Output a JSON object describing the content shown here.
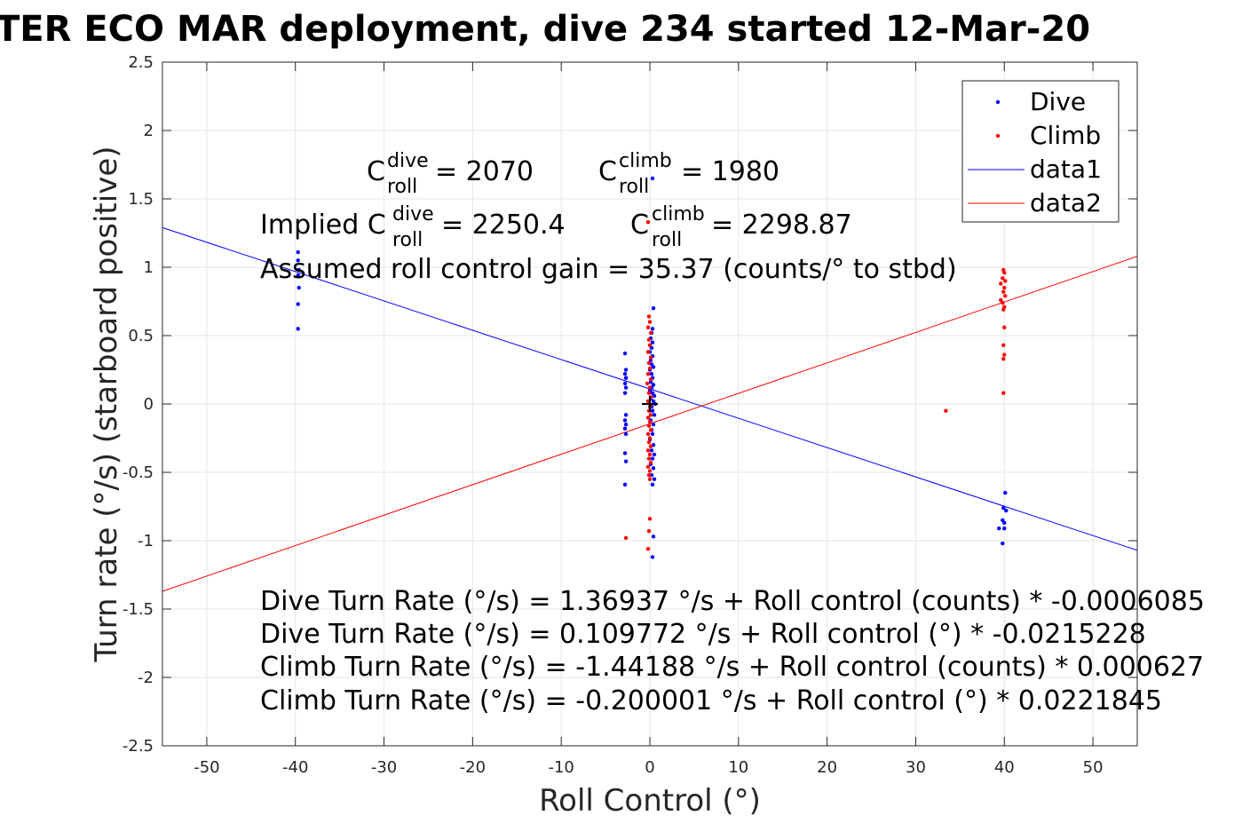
{
  "title": "TER ECO MAR deployment, dive 234 started 12-Mar-20",
  "chart_data": {
    "type": "scatter",
    "title": "TER ECO MAR deployment, dive 234 started 12-Mar-20",
    "xlabel": "Roll Control (°)",
    "ylabel": "Turn rate (°/s) (starboard positive)",
    "xlim": [
      -55,
      55
    ],
    "ylim": [
      -2.5,
      2.5
    ],
    "xticks": [
      "-50",
      "-40",
      "-30",
      "-20",
      "-10",
      "0",
      "10",
      "20",
      "30",
      "40",
      "50"
    ],
    "yticks": [
      "-2.5",
      "-2",
      "-1.5",
      "-1",
      "-0.5",
      "0",
      "0.5",
      "1",
      "1.5",
      "2",
      "2.5"
    ],
    "grid": true,
    "legend_position": "top-right",
    "legend": [
      "Dive",
      "Climb",
      "data1",
      "data2"
    ],
    "colors": {
      "dive": "#0000ff",
      "climb": "#ff0000",
      "axis": "#262626",
      "grid": "#e5e5e5"
    },
    "series": [
      {
        "name": "Dive",
        "kind": "scatter",
        "color": "#0000ff",
        "points": [
          [
            -39.7,
            1.11
          ],
          [
            -39.7,
            1.05
          ],
          [
            -39.6,
            0.98
          ],
          [
            -39.7,
            0.94
          ],
          [
            -39.6,
            0.85
          ],
          [
            -39.7,
            0.73
          ],
          [
            -39.7,
            0.55
          ],
          [
            -2.8,
            0.37
          ],
          [
            -2.7,
            0.25
          ],
          [
            -2.8,
            0.22
          ],
          [
            -2.7,
            0.19
          ],
          [
            -2.8,
            0.15
          ],
          [
            -2.7,
            0.12
          ],
          [
            -2.8,
            0.08
          ],
          [
            -2.7,
            -0.08
          ],
          [
            -2.8,
            -0.12
          ],
          [
            -2.7,
            -0.15
          ],
          [
            -2.8,
            -0.18
          ],
          [
            -2.7,
            -0.22
          ],
          [
            -2.8,
            -0.36
          ],
          [
            -2.7,
            -0.42
          ],
          [
            -2.8,
            -0.59
          ],
          [
            0.3,
            1.65
          ],
          [
            0.4,
            0.7
          ],
          [
            0.3,
            0.55
          ],
          [
            0.2,
            0.52
          ],
          [
            0.1,
            0.48
          ],
          [
            0.3,
            0.45
          ],
          [
            0.2,
            0.41
          ],
          [
            0.0,
            0.38
          ],
          [
            0.3,
            0.35
          ],
          [
            0.1,
            0.32
          ],
          [
            0.2,
            0.29
          ],
          [
            0.4,
            0.27
          ],
          [
            0.0,
            0.25
          ],
          [
            0.2,
            0.22
          ],
          [
            0.3,
            0.19
          ],
          [
            0.1,
            0.16
          ],
          [
            0.4,
            0.14
          ],
          [
            0.2,
            0.12
          ],
          [
            0.0,
            0.1
          ],
          [
            0.3,
            0.08
          ],
          [
            0.5,
            0.06
          ],
          [
            0.1,
            0.04
          ],
          [
            0.4,
            0.02
          ],
          [
            0.6,
            0.0
          ],
          [
            0.2,
            -0.02
          ],
          [
            0.3,
            -0.05
          ],
          [
            0.5,
            -0.08
          ],
          [
            0.1,
            -0.12
          ],
          [
            0.4,
            -0.15
          ],
          [
            0.2,
            -0.19
          ],
          [
            0.3,
            -0.22
          ],
          [
            0.0,
            -0.26
          ],
          [
            0.4,
            -0.3
          ],
          [
            0.2,
            -0.34
          ],
          [
            0.5,
            -0.37
          ],
          [
            0.3,
            -0.4
          ],
          [
            0.1,
            -0.44
          ],
          [
            0.4,
            -0.47
          ],
          [
            0.2,
            -0.52
          ],
          [
            0.5,
            -0.55
          ],
          [
            0.3,
            -0.59
          ],
          [
            0.4,
            -0.97
          ],
          [
            0.3,
            -1.12
          ],
          [
            40.1,
            -0.65
          ],
          [
            39.9,
            -0.76
          ],
          [
            40.2,
            -0.78
          ],
          [
            39.8,
            -0.85
          ],
          [
            40.0,
            -0.87
          ],
          [
            39.4,
            -0.91
          ],
          [
            40.0,
            -0.91
          ],
          [
            39.8,
            -1.02
          ]
        ]
      },
      {
        "name": "Climb",
        "kind": "scatter",
        "color": "#ff0000",
        "points": [
          [
            -0.2,
            1.33
          ],
          [
            -0.1,
            0.64
          ],
          [
            0.0,
            0.6
          ],
          [
            -0.2,
            0.56
          ],
          [
            0.1,
            0.52
          ],
          [
            -0.1,
            0.47
          ],
          [
            0.0,
            0.43
          ],
          [
            -0.2,
            0.38
          ],
          [
            0.1,
            0.34
          ],
          [
            -0.1,
            0.3
          ],
          [
            0.0,
            0.26
          ],
          [
            -0.2,
            0.22
          ],
          [
            0.1,
            0.18
          ],
          [
            -0.3,
            0.15
          ],
          [
            0.0,
            0.12
          ],
          [
            -0.1,
            0.08
          ],
          [
            0.1,
            0.05
          ],
          [
            -0.2,
            0.02
          ],
          [
            0.0,
            -0.02
          ],
          [
            -0.1,
            -0.05
          ],
          [
            0.1,
            -0.08
          ],
          [
            -0.2,
            -0.1
          ],
          [
            0.0,
            -0.13
          ],
          [
            -0.1,
            -0.16
          ],
          [
            0.1,
            -0.19
          ],
          [
            -0.2,
            -0.22
          ],
          [
            0.0,
            -0.25
          ],
          [
            -0.1,
            -0.28
          ],
          [
            0.1,
            -0.31
          ],
          [
            -0.2,
            -0.34
          ],
          [
            0.0,
            -0.37
          ],
          [
            -0.1,
            -0.4
          ],
          [
            0.1,
            -0.43
          ],
          [
            -0.2,
            -0.46
          ],
          [
            0.0,
            -0.49
          ],
          [
            -0.1,
            -0.52
          ],
          [
            0.0,
            -0.55
          ],
          [
            0.0,
            -0.84
          ],
          [
            -0.1,
            -0.93
          ],
          [
            -0.2,
            -1.06
          ],
          [
            -2.7,
            -0.98
          ],
          [
            39.9,
            0.98
          ],
          [
            40.0,
            0.96
          ],
          [
            39.8,
            0.92
          ],
          [
            40.1,
            0.9
          ],
          [
            39.6,
            0.88
          ],
          [
            40.0,
            0.85
          ],
          [
            39.9,
            0.82
          ],
          [
            40.1,
            0.79
          ],
          [
            39.6,
            0.76
          ],
          [
            39.8,
            0.74
          ],
          [
            40.0,
            0.71
          ],
          [
            39.9,
            0.69
          ],
          [
            40.0,
            0.56
          ],
          [
            39.9,
            0.43
          ],
          [
            40.0,
            0.36
          ],
          [
            39.9,
            0.33
          ],
          [
            39.9,
            0.08
          ],
          [
            33.4,
            -0.05
          ]
        ]
      },
      {
        "name": "data1",
        "kind": "line",
        "color": "#0000ff",
        "points": [
          [
            -55,
            1.29
          ],
          [
            55,
            -1.07
          ]
        ]
      },
      {
        "name": "data2",
        "kind": "line",
        "color": "#ff0000",
        "points": [
          [
            -55,
            -1.37
          ],
          [
            55,
            1.08
          ]
        ]
      },
      {
        "name": "",
        "kind": "marker",
        "color": "#000000",
        "points": [
          [
            0,
            0
          ]
        ]
      }
    ],
    "annotations": {
      "c_dive_prefix": "C",
      "c_dive_sup": "dive",
      "c_dive_sub": "roll",
      "c_dive_value": " = 2070",
      "c_climb_prefix": "C",
      "c_climb_sup": "climb",
      "c_climb_sub": "roll",
      "c_climb_value": " = 1980",
      "implied_prefix": "Implied C",
      "implied_dive_sup": "dive",
      "implied_dive_sub": "roll",
      "implied_dive_value": " = 2250.4",
      "implied_climb_prefix": "C",
      "implied_climb_sup": "climb",
      "implied_climb_sub": "roll",
      "implied_climb_value": " = 2298.87",
      "gain": "Assumed roll control gain = 35.37 (counts/° to stbd)",
      "eq1": "Dive Turn Rate (°/s) = 1.36937 °/s + Roll control (counts) * -0.0006085",
      "eq2": "Dive Turn Rate (°/s) = 0.109772 °/s + Roll control (°) * -0.0215228",
      "eq3": "Climb Turn Rate (°/s) = -1.44188 °/s + Roll control (counts) * 0.000627",
      "eq4": "Climb Turn Rate (°/s) = -0.200001 °/s + Roll control (°) * 0.0221845"
    }
  }
}
